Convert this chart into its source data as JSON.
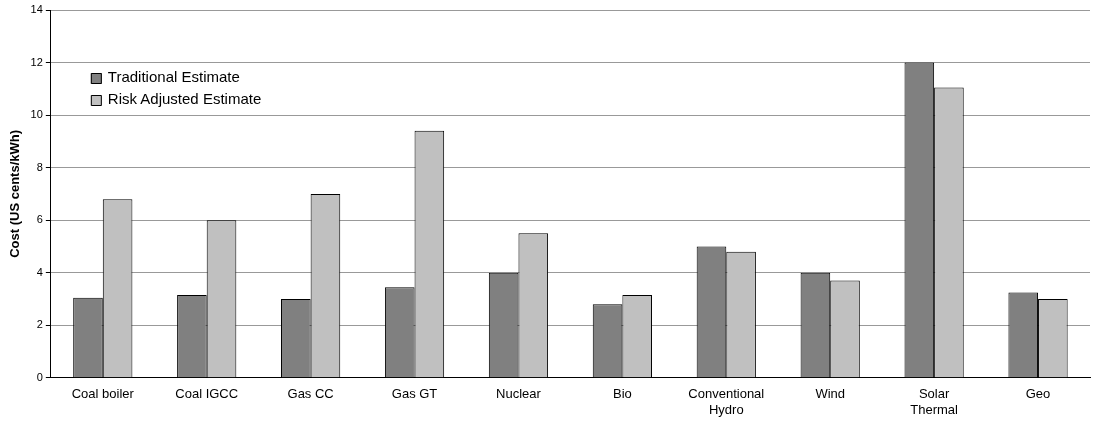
{
  "chart_data": {
    "type": "bar",
    "ylabel": "Cost (US cents/kWh)",
    "categories": [
      "Coal boiler",
      "Coal IGCC",
      "Gas CC",
      "Gas GT",
      "Nuclear",
      "Bio",
      "Conventional Hydro",
      "Wind",
      "Solar Thermal",
      "Geo"
    ],
    "series": [
      {
        "name": "Traditional Estimate",
        "color": "#808080",
        "values": [
          3.05,
          3.15,
          3.0,
          3.45,
          4.0,
          2.8,
          5.0,
          4.0,
          12.0,
          3.25
        ]
      },
      {
        "name": "Risk Adjusted Estimate",
        "color": "#c0c0c0",
        "values": [
          6.8,
          6.0,
          7.0,
          9.4,
          5.5,
          3.15,
          4.8,
          3.7,
          11.05,
          3.0
        ]
      }
    ],
    "ylim": [
      0,
      14
    ],
    "yticks": [
      0,
      2,
      4,
      6,
      8,
      10,
      12,
      14
    ],
    "grid": "y",
    "legend": "top left"
  }
}
